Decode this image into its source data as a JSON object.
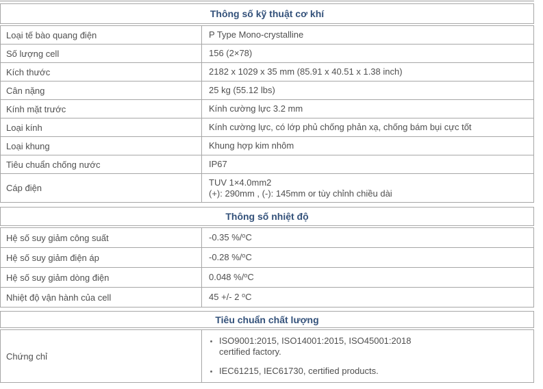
{
  "colors": {
    "border": "#a6a6a6",
    "header_text": "#33517a",
    "body_text": "#4f4f4f",
    "background": "#ffffff"
  },
  "sections": [
    {
      "title": "Thông số kỹ thuật cơ khí",
      "rows": [
        {
          "label": "Loại tế bào quang điện",
          "value_lines": [
            "P Type Mono-crystalline"
          ]
        },
        {
          "label": "Số lượng cell",
          "value_lines": [
            "156 (2×78)"
          ]
        },
        {
          "label": "Kích thước",
          "value_lines": [
            "2182 x 1029 x 35 mm (85.91 x 40.51 x 1.38 inch)"
          ]
        },
        {
          "label": "Cân nặng",
          "value_lines": [
            "25 kg (55.12 lbs)"
          ]
        },
        {
          "label": "Kính mặt trước",
          "value_lines": [
            "Kính cường lực 3.2 mm"
          ]
        },
        {
          "label": "Loại kính",
          "value_lines": [
            "Kính cường lực, có lớp phủ chống phản xạ, chống bám bụi cực tốt"
          ]
        },
        {
          "label": "Loại khung",
          "value_lines": [
            "Khung hợp kim nhôm"
          ]
        },
        {
          "label": "Tiêu chuẩn chống nước",
          "value_lines": [
            "IP67"
          ]
        },
        {
          "label": "Cáp điện",
          "value_lines": [
            "TUV 1×4.0mm2",
            "(+): 290mm , (-): 145mm or tùy chỉnh chiều dài"
          ]
        }
      ]
    },
    {
      "title": "Thông số nhiệt độ",
      "rows": [
        {
          "label": "Hệ số suy giảm công suất",
          "value_main": "-0.35 %/",
          "value_sup": "o",
          "value_tail": "C"
        },
        {
          "label": "Hệ số suy giảm điện áp",
          "value_main": "-0.28 %/",
          "value_sup": "o",
          "value_tail": "C"
        },
        {
          "label": "Hệ số suy giảm dòng điện",
          "value_main": "0.048 %/",
          "value_sup": "o",
          "value_tail": "C"
        },
        {
          "label": "Nhiệt độ vận hành của cell",
          "value_main": "45 +/- 2 ",
          "value_sup": "o",
          "value_tail": "C"
        }
      ]
    },
    {
      "title": "Tiêu chuẩn chất lượng",
      "rows": [
        {
          "label": "Chứng chỉ",
          "bullets": [
            {
              "lines": [
                "ISO9001:2015, ISO14001:2015, ISO45001:2018",
                "certified factory."
              ]
            },
            {
              "lines": [
                "IEC61215, IEC61730, certified products."
              ]
            }
          ]
        }
      ]
    }
  ]
}
